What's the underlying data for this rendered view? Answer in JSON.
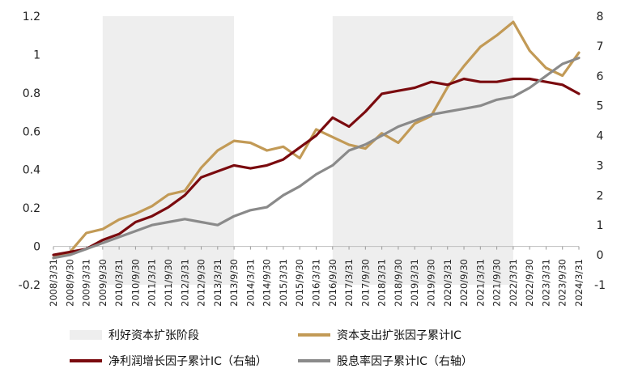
{
  "chart_data": {
    "type": "line",
    "title": "",
    "x": [
      "2008/3/31",
      "2008/9/30",
      "2009/3/31",
      "2009/9/30",
      "2010/3/31",
      "2010/9/30",
      "2011/3/31",
      "2011/9/30",
      "2012/3/31",
      "2012/9/30",
      "2013/3/31",
      "2013/9/30",
      "2014/3/31",
      "2014/9/30",
      "2015/3/31",
      "2015/9/30",
      "2016/3/31",
      "2016/9/30",
      "2017/3/31",
      "2017/9/30",
      "2018/3/31",
      "2018/9/30",
      "2019/3/31",
      "2019/9/30",
      "2020/3/31",
      "2020/9/30",
      "2021/3/31",
      "2021/9/30",
      "2022/3/31",
      "2022/9/30",
      "2023/3/31",
      "2023/9/30",
      "2024/3/31"
    ],
    "y_left": {
      "ticks": [
        "-0.2",
        "0",
        "0.2",
        "0.4",
        "0.6",
        "0.8",
        "1",
        "1.2"
      ],
      "range": [
        -0.2,
        1.2
      ]
    },
    "y_right": {
      "ticks": [
        "-1",
        "0",
        "1",
        "2",
        "3",
        "4",
        "5",
        "6",
        "7",
        "8"
      ],
      "range": [
        -1,
        8
      ]
    },
    "shaded_periods": [
      {
        "start": "2009/9/30",
        "end": "2013/9/30"
      },
      {
        "start": "2016/9/30",
        "end": "2022/3/31"
      }
    ],
    "series": [
      {
        "name": "资本支出扩张因子累计IC",
        "axis": "left",
        "color": "#C29A56",
        "values": [
          -0.06,
          -0.03,
          0.07,
          0.09,
          0.14,
          0.17,
          0.21,
          0.27,
          0.29,
          0.41,
          0.5,
          0.55,
          0.54,
          0.5,
          0.52,
          0.46,
          0.61,
          0.57,
          0.53,
          0.51,
          0.59,
          0.54,
          0.64,
          0.68,
          0.83,
          0.94,
          1.04,
          1.1,
          1.17,
          1.02,
          0.93,
          0.89,
          1.01
        ]
      },
      {
        "name": "净利润增长因子累计IC（右轴）",
        "axis": "right",
        "color": "#7A0A0E",
        "values": [
          0.0,
          0.1,
          0.2,
          0.5,
          0.7,
          1.1,
          1.3,
          1.6,
          2.0,
          2.6,
          2.8,
          3.0,
          2.9,
          3.0,
          3.2,
          3.6,
          4.0,
          4.6,
          4.3,
          4.8,
          5.4,
          5.5,
          5.6,
          5.8,
          5.7,
          5.9,
          5.8,
          5.8,
          5.9,
          5.9,
          5.8,
          5.7,
          5.4
        ]
      },
      {
        "name": "股息率因子累计IC（右轴）",
        "axis": "right",
        "color": "#8A8A8A",
        "values": [
          -0.1,
          0.0,
          0.2,
          0.4,
          0.6,
          0.8,
          1.0,
          1.1,
          1.2,
          1.1,
          1.0,
          1.3,
          1.5,
          1.6,
          2.0,
          2.3,
          2.7,
          3.0,
          3.5,
          3.7,
          4.0,
          4.3,
          4.5,
          4.7,
          4.8,
          4.9,
          5.0,
          5.2,
          5.3,
          5.6,
          6.0,
          6.4,
          6.6
        ]
      }
    ],
    "legend": {
      "position": "bottom",
      "band_label": "利好资本扩张阶段",
      "items": [
        {
          "label": "利好资本扩张阶段",
          "kind": "band",
          "color": "#EEEEEE"
        },
        {
          "label": "资本支出扩张因子累计IC",
          "kind": "line",
          "color": "#C29A56"
        },
        {
          "label": "净利润增长因子累计IC（右轴）",
          "kind": "line",
          "color": "#7A0A0E"
        },
        {
          "label": "股息率因子累计IC（右轴）",
          "kind": "line",
          "color": "#8A8A8A"
        }
      ]
    },
    "grid": false
  }
}
